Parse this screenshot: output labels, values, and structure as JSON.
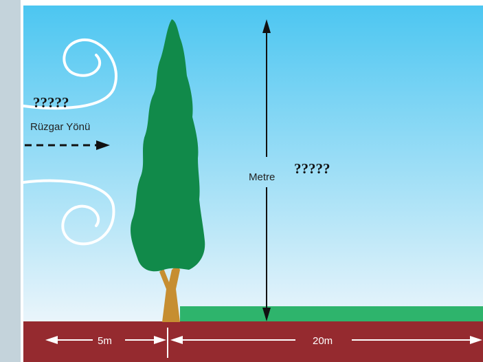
{
  "wind": {
    "unknown": "?????",
    "label": "Rüzgar Yönü"
  },
  "height": {
    "label": "Metre",
    "unknown": "?????"
  },
  "distances": {
    "near": "5m",
    "far": "20m"
  }
}
